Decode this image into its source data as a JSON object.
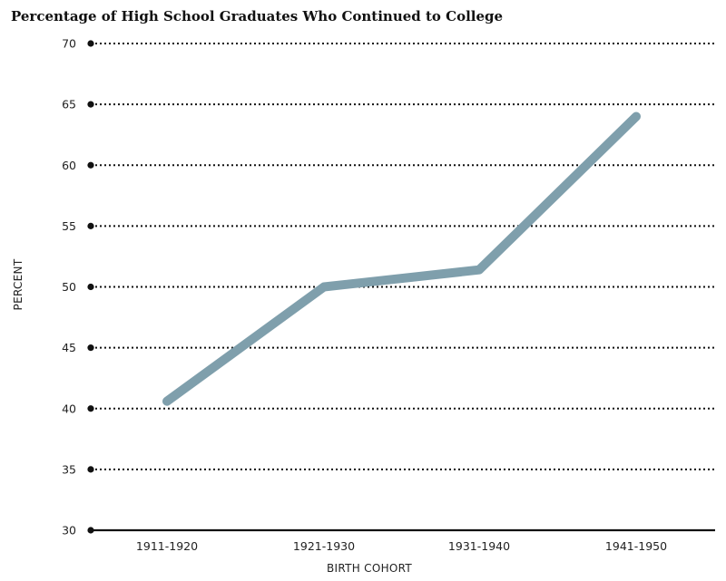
{
  "chart_data": {
    "type": "line",
    "title": "Percentage of High School Graduates Who Continued to College",
    "xlabel": "BIRTH COHORT",
    "ylabel": "PERCENT",
    "categories": [
      "1911-1920",
      "1921-1930",
      "1931-1940",
      "1941-1950"
    ],
    "series": [
      {
        "values": [
          40.6,
          50.0,
          51.4,
          64.0
        ]
      }
    ],
    "ylim": [
      30,
      70
    ],
    "yticks": [
      30,
      35,
      40,
      45,
      50,
      55,
      60,
      65,
      70
    ],
    "grid": "dotted horizontal",
    "line_color": "#7f9fac"
  }
}
